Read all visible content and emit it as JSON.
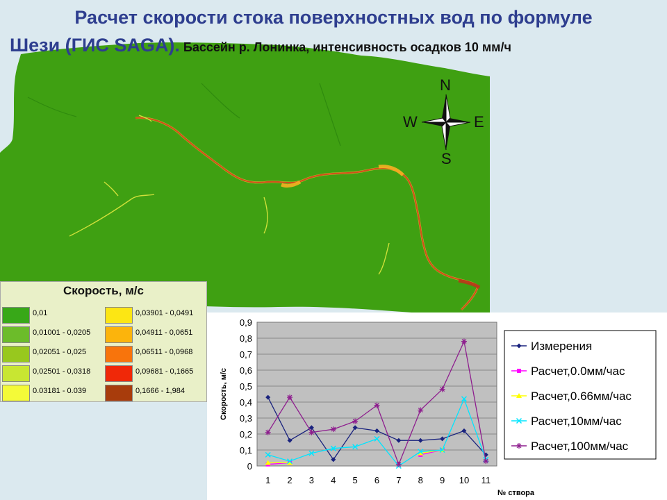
{
  "header": {
    "title_line1": "Расчет скорости стока поверхностных вод по формуле",
    "title_line2_main": "Шези (ГИС SAGA).",
    "title_line2_rest": " Бассейн р. Лонинка, интенсивность осадков 10 мм/ч"
  },
  "map": {
    "background_color": "#3fa012",
    "compass": {
      "n": "N",
      "s": "S",
      "e": "E",
      "w": "W"
    }
  },
  "legend": {
    "title": "Скорость, м/с",
    "items": [
      {
        "label": "0,01",
        "color": "#38a818"
      },
      {
        "label": "0,01001 - 0,0205",
        "color": "#6cbc2a"
      },
      {
        "label": "0,02051 - 0,025",
        "color": "#98c81e"
      },
      {
        "label": "0,02501 - 0,0318",
        "color": "#c8e632"
      },
      {
        "label": "0.03181 - 0.039",
        "color": "#f4fa38"
      },
      {
        "label": "0,03901 - 0,0491",
        "color": "#fce614"
      },
      {
        "label": "0,04911 - 0,0651",
        "color": "#fcb40c"
      },
      {
        "label": "0,06511 - 0,0968",
        "color": "#f8740c"
      },
      {
        "label": "0,09681 - 0,1665",
        "color": "#f02808"
      },
      {
        "label": "0,1666 - 1,984",
        "color": "#a83c0c"
      }
    ]
  },
  "chart_data": {
    "type": "line",
    "title": "",
    "xlabel": "№ створа",
    "ylabel": "Скорость, м/с",
    "ylim": [
      0,
      0.9
    ],
    "yticks": [
      "0",
      "0,1",
      "0,2",
      "0,3",
      "0,4",
      "0,5",
      "0,6",
      "0,7",
      "0,8",
      "0,9"
    ],
    "categories": [
      "1",
      "2",
      "3",
      "4",
      "5",
      "6",
      "7",
      "8",
      "9",
      "10",
      "11"
    ],
    "grid": true,
    "legend_position": "right",
    "plot_background": "#c0c0c0",
    "series": [
      {
        "name": "Измерения",
        "color": "#1a237e",
        "marker": "diamond",
        "values": [
          0.43,
          0.16,
          0.24,
          0.04,
          0.24,
          0.22,
          0.16,
          0.16,
          0.17,
          0.22,
          0.07
        ]
      },
      {
        "name": "Расчет,0.0мм/час",
        "color": "#ff00ff",
        "marker": "square",
        "values": [
          0.01,
          0.02,
          null,
          null,
          null,
          null,
          null,
          0.07,
          0.1,
          null,
          null
        ]
      },
      {
        "name": "Расчет,0.66мм/час",
        "color": "#ffff00",
        "marker": "triangle",
        "values": [
          0.02,
          0.02,
          null,
          null,
          null,
          null,
          null,
          0.08,
          0.1,
          null,
          null
        ]
      },
      {
        "name": "Расчет,10мм/час",
        "color": "#00e5ff",
        "marker": "x",
        "values": [
          0.07,
          0.03,
          0.08,
          0.11,
          0.12,
          0.17,
          0.0,
          0.09,
          0.1,
          0.42,
          0.04
        ]
      },
      {
        "name": "Расчет,100мм/час",
        "color": "#8e1e8e",
        "marker": "star",
        "values": [
          0.21,
          0.43,
          0.21,
          0.23,
          0.28,
          0.38,
          0.01,
          0.35,
          0.48,
          0.78,
          0.03
        ]
      }
    ]
  }
}
